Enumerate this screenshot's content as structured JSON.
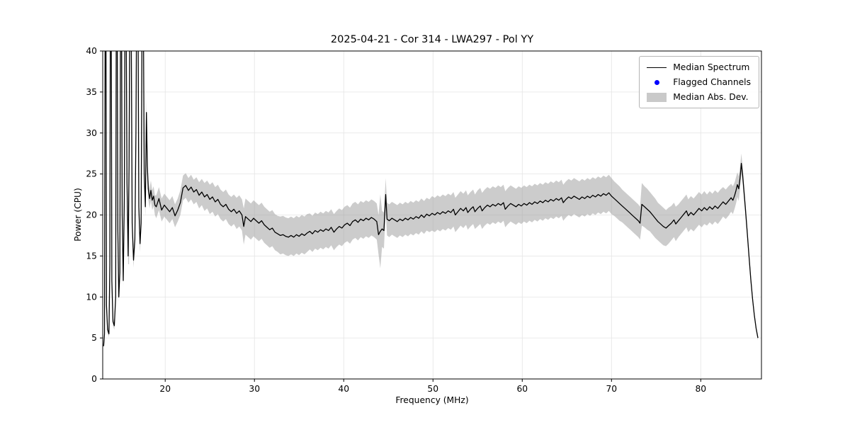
{
  "chart_data": {
    "type": "line",
    "title": "2025-04-21 - Cor 314 - LWA297 - Pol YY",
    "xlabel": "Frequency (MHz)",
    "ylabel": "Power (CPU)",
    "xlim": [
      13.0,
      86.8
    ],
    "ylim": [
      0,
      40
    ],
    "xticks": [
      20,
      30,
      40,
      50,
      60,
      70,
      80
    ],
    "yticks": [
      0,
      5,
      10,
      15,
      20,
      25,
      30,
      35,
      40
    ],
    "grid": true,
    "legend_position": "upper right",
    "legend_entries": [
      {
        "label": "Median Spectrum",
        "marker": "line",
        "color": "#000000"
      },
      {
        "label": "Flagged Channels",
        "marker": "dot",
        "color": "#0000ff"
      },
      {
        "label": "Median Abs. Dev.",
        "marker": "band",
        "color": "#c9c9c9"
      }
    ],
    "line_color": "#000000",
    "band_color": "#999999",
    "band_alpha": 0.5,
    "grid_color": "#e4e4e4",
    "flagged_channels": [],
    "spectrum_format": [
      "frequency_mhz",
      "power_cpu",
      "median_abs_dev"
    ],
    "spectrum": [
      [
        13.1,
        4,
        0.3
      ],
      [
        13.2,
        5.5,
        0.4
      ],
      [
        13.28,
        46,
        2
      ],
      [
        13.36,
        46,
        2
      ],
      [
        13.42,
        9,
        0.5
      ],
      [
        13.55,
        6,
        0.4
      ],
      [
        13.7,
        5.5,
        0.4
      ],
      [
        13.8,
        14,
        0.8
      ],
      [
        13.86,
        46,
        2
      ],
      [
        13.95,
        46,
        2
      ],
      [
        14.02,
        12,
        0.6
      ],
      [
        14.15,
        7,
        0.5
      ],
      [
        14.3,
        6.5,
        0.5
      ],
      [
        14.45,
        10,
        0.6
      ],
      [
        14.52,
        46,
        2
      ],
      [
        14.62,
        46,
        2
      ],
      [
        14.7,
        18,
        1
      ],
      [
        14.8,
        10,
        0.6
      ],
      [
        14.92,
        13,
        0.8
      ],
      [
        15,
        46,
        2
      ],
      [
        15.1,
        46,
        2
      ],
      [
        15.18,
        20,
        1.2
      ],
      [
        15.3,
        12,
        0.8
      ],
      [
        15.42,
        22,
        1.5
      ],
      [
        15.5,
        46,
        3
      ],
      [
        15.62,
        46,
        3
      ],
      [
        15.72,
        24,
        1.5
      ],
      [
        15.85,
        15,
        1
      ],
      [
        15.95,
        26,
        12
      ],
      [
        16.05,
        46,
        3
      ],
      [
        16.18,
        46,
        3
      ],
      [
        16.3,
        19,
        1.2
      ],
      [
        16.45,
        14.5,
        0.9
      ],
      [
        16.6,
        17,
        1
      ],
      [
        16.72,
        30,
        2
      ],
      [
        16.8,
        46,
        2
      ],
      [
        16.95,
        46,
        2
      ],
      [
        17.05,
        21,
        1.2
      ],
      [
        17.18,
        16.5,
        1
      ],
      [
        17.3,
        19,
        1.1
      ],
      [
        17.42,
        46,
        2
      ],
      [
        17.55,
        46,
        2
      ],
      [
        17.65,
        25,
        1.4
      ],
      [
        17.78,
        21,
        1.2
      ],
      [
        17.9,
        32.5,
        1.5
      ],
      [
        18,
        26,
        1.4
      ],
      [
        18.1,
        23.2,
        1.3
      ],
      [
        18.25,
        22,
        1.2
      ],
      [
        18.4,
        23,
        1.2
      ],
      [
        18.55,
        21.8,
        1.2
      ],
      [
        18.7,
        22.3,
        1.2
      ],
      [
        18.85,
        21.2,
        1.2
      ],
      [
        19,
        21,
        1.4
      ],
      [
        19.3,
        22,
        1.4
      ],
      [
        19.6,
        20.6,
        1.4
      ],
      [
        19.9,
        21.2,
        1.4
      ],
      [
        20.2,
        20.8,
        1.4
      ],
      [
        20.5,
        20.4,
        1.4
      ],
      [
        20.8,
        20.9,
        1.4
      ],
      [
        21.1,
        19.9,
        1.4
      ],
      [
        21.4,
        20.6,
        1.4
      ],
      [
        21.7,
        21.5,
        1.5
      ],
      [
        22,
        23.3,
        1.5
      ],
      [
        22.3,
        23.6,
        1.5
      ],
      [
        22.6,
        23,
        1.5
      ],
      [
        22.9,
        23.4,
        1.5
      ],
      [
        23.2,
        22.8,
        1.5
      ],
      [
        23.5,
        23.1,
        1.5
      ],
      [
        23.8,
        22.4,
        1.6
      ],
      [
        24.1,
        22.8,
        1.6
      ],
      [
        24.4,
        22.2,
        1.7
      ],
      [
        24.7,
        22.5,
        1.7
      ],
      [
        25,
        21.9,
        1.8
      ],
      [
        25.3,
        22.2,
        1.8
      ],
      [
        25.6,
        21.6,
        1.8
      ],
      [
        25.9,
        21.9,
        1.8
      ],
      [
        26.2,
        21.3,
        1.8
      ],
      [
        26.5,
        21,
        1.8
      ],
      [
        26.8,
        21.3,
        1.8
      ],
      [
        27.1,
        20.7,
        1.8
      ],
      [
        27.4,
        20.4,
        1.8
      ],
      [
        27.7,
        20.7,
        1.8
      ],
      [
        28,
        20.2,
        1.9
      ],
      [
        28.3,
        20.5,
        1.9
      ],
      [
        28.6,
        20,
        1.9
      ],
      [
        28.8,
        18.6,
        2.2
      ],
      [
        29,
        19.8,
        2.2
      ],
      [
        29.3,
        19.5,
        2.2
      ],
      [
        29.6,
        19.2,
        2.2
      ],
      [
        29.9,
        19.6,
        2.2
      ],
      [
        30.2,
        19.3,
        2.2
      ],
      [
        30.5,
        19,
        2.2
      ],
      [
        30.8,
        19.3,
        2.2
      ],
      [
        31.1,
        18.8,
        2.2
      ],
      [
        31.4,
        18.5,
        2.2
      ],
      [
        31.7,
        18.2,
        2.2
      ],
      [
        32,
        18.4,
        2.2
      ],
      [
        32.3,
        17.9,
        2.2
      ],
      [
        32.6,
        17.7,
        2.2
      ],
      [
        32.9,
        17.5,
        2.3
      ],
      [
        33.2,
        17.6,
        2.3
      ],
      [
        33.5,
        17.4,
        2.3
      ],
      [
        33.8,
        17.3,
        2.3
      ],
      [
        34.1,
        17.5,
        2.3
      ],
      [
        34.4,
        17.3,
        2.3
      ],
      [
        34.7,
        17.6,
        2.3
      ],
      [
        35,
        17.4,
        2.3
      ],
      [
        35.3,
        17.7,
        2.3
      ],
      [
        35.6,
        17.5,
        2.3
      ],
      [
        35.9,
        17.8,
        2.3
      ],
      [
        36.2,
        18,
        2.2
      ],
      [
        36.5,
        17.7,
        2.2
      ],
      [
        36.8,
        18.1,
        2.2
      ],
      [
        37.1,
        17.9,
        2.2
      ],
      [
        37.4,
        18.2,
        2.2
      ],
      [
        37.7,
        18,
        2.2
      ],
      [
        38,
        18.3,
        2.2
      ],
      [
        38.3,
        18.1,
        2.2
      ],
      [
        38.6,
        18.5,
        2.2
      ],
      [
        38.9,
        17.9,
        2.2
      ],
      [
        39.2,
        18.3,
        2.2
      ],
      [
        39.5,
        18.6,
        2.2
      ],
      [
        39.8,
        18.4,
        2.2
      ],
      [
        40.1,
        18.8,
        2.2
      ],
      [
        40.4,
        19,
        2.2
      ],
      [
        40.7,
        18.7,
        2.2
      ],
      [
        41,
        19.2,
        2.2
      ],
      [
        41.3,
        19.4,
        2.2
      ],
      [
        41.6,
        19.1,
        2.2
      ],
      [
        41.9,
        19.5,
        2.2
      ],
      [
        42.2,
        19.3,
        2.2
      ],
      [
        42.5,
        19.6,
        2.2
      ],
      [
        42.8,
        19.4,
        2.2
      ],
      [
        43.1,
        19.7,
        2.2
      ],
      [
        43.4,
        19.5,
        2.2
      ],
      [
        43.7,
        19.2,
        2.2
      ],
      [
        43.9,
        17.6,
        2.4
      ],
      [
        44.1,
        18,
        4.5
      ],
      [
        44.3,
        18.3,
        2.2
      ],
      [
        44.5,
        18.1,
        2.2
      ],
      [
        44.7,
        22.5,
        2
      ],
      [
        44.85,
        19.5,
        2
      ],
      [
        45.1,
        19.3,
        2
      ],
      [
        45.4,
        19.6,
        2
      ],
      [
        45.7,
        19.4,
        2
      ],
      [
        46,
        19.2,
        2
      ],
      [
        46.3,
        19.5,
        2
      ],
      [
        46.6,
        19.3,
        2
      ],
      [
        46.9,
        19.6,
        2
      ],
      [
        47.2,
        19.4,
        2
      ],
      [
        47.5,
        19.7,
        2
      ],
      [
        47.8,
        19.5,
        2
      ],
      [
        48.1,
        19.8,
        2
      ],
      [
        48.4,
        19.6,
        2
      ],
      [
        48.7,
        20,
        2
      ],
      [
        49,
        19.7,
        2
      ],
      [
        49.3,
        20.1,
        2
      ],
      [
        49.6,
        19.9,
        2
      ],
      [
        49.9,
        20.2,
        2.1
      ],
      [
        50.2,
        20,
        2.1
      ],
      [
        50.5,
        20.3,
        2.1
      ],
      [
        50.8,
        20.1,
        2.1
      ],
      [
        51.1,
        20.4,
        2.1
      ],
      [
        51.4,
        20.2,
        2.1
      ],
      [
        51.7,
        20.5,
        2.1
      ],
      [
        52,
        20.3,
        2.1
      ],
      [
        52.3,
        20.7,
        2.1
      ],
      [
        52.5,
        20,
        2.1
      ],
      [
        52.8,
        20.4,
        2.1
      ],
      [
        53.1,
        20.8,
        2.1
      ],
      [
        53.4,
        20.5,
        2.1
      ],
      [
        53.7,
        20.9,
        2.1
      ],
      [
        53.9,
        20.3,
        2.1
      ],
      [
        54.2,
        20.7,
        2.1
      ],
      [
        54.5,
        21,
        2.1
      ],
      [
        54.7,
        20.4,
        2.1
      ],
      [
        55,
        20.8,
        2.2
      ],
      [
        55.3,
        21.1,
        2.2
      ],
      [
        55.5,
        20.5,
        2.2
      ],
      [
        55.8,
        20.9,
        2.2
      ],
      [
        56.1,
        21.2,
        2.2
      ],
      [
        56.4,
        21,
        2.2
      ],
      [
        56.7,
        21.3,
        2.2
      ],
      [
        57,
        21.1,
        2.2
      ],
      [
        57.3,
        21.4,
        2.2
      ],
      [
        57.6,
        21.2,
        2.2
      ],
      [
        57.9,
        21.5,
        2.2
      ],
      [
        58.1,
        20.7,
        2.2
      ],
      [
        58.4,
        21.1,
        2.2
      ],
      [
        58.7,
        21.4,
        2.2
      ],
      [
        59,
        21.2,
        2.2
      ],
      [
        59.3,
        21,
        2.2
      ],
      [
        59.6,
        21.3,
        2.2
      ],
      [
        59.9,
        21.1,
        2.2
      ],
      [
        60.2,
        21.4,
        2.2
      ],
      [
        60.5,
        21.2,
        2.2
      ],
      [
        60.8,
        21.5,
        2.2
      ],
      [
        61.1,
        21.3,
        2.2
      ],
      [
        61.4,
        21.6,
        2.2
      ],
      [
        61.7,
        21.4,
        2.2
      ],
      [
        62,
        21.7,
        2.2
      ],
      [
        62.3,
        21.5,
        2.2
      ],
      [
        62.6,
        21.8,
        2.2
      ],
      [
        62.9,
        21.6,
        2.2
      ],
      [
        63.2,
        21.9,
        2.2
      ],
      [
        63.5,
        21.7,
        2.2
      ],
      [
        63.8,
        22,
        2.2
      ],
      [
        64.1,
        21.8,
        2.2
      ],
      [
        64.4,
        22.1,
        2.2
      ],
      [
        64.6,
        21.5,
        2.2
      ],
      [
        64.9,
        21.9,
        2.2
      ],
      [
        65.2,
        22.2,
        2.2
      ],
      [
        65.5,
        22,
        2.2
      ],
      [
        65.8,
        22.3,
        2.2
      ],
      [
        66.1,
        22.1,
        2.2
      ],
      [
        66.4,
        21.9,
        2.2
      ],
      [
        66.7,
        22.2,
        2.2
      ],
      [
        67,
        22,
        2.2
      ],
      [
        67.3,
        22.3,
        2.2
      ],
      [
        67.6,
        22.1,
        2.2
      ],
      [
        67.9,
        22.4,
        2.2
      ],
      [
        68.2,
        22.2,
        2.2
      ],
      [
        68.5,
        22.5,
        2.2
      ],
      [
        68.8,
        22.3,
        2.2
      ],
      [
        69.1,
        22.6,
        2.2
      ],
      [
        69.4,
        22.4,
        2.2
      ],
      [
        69.7,
        22.7,
        2.2
      ],
      [
        70,
        22.3,
        2.2
      ],
      [
        70.3,
        22,
        2.1
      ],
      [
        70.6,
        21.7,
        2.1
      ],
      [
        70.9,
        21.4,
        2.1
      ],
      [
        71.2,
        21.1,
        2
      ],
      [
        71.5,
        20.8,
        2
      ],
      [
        71.8,
        20.5,
        2
      ],
      [
        72.1,
        20.2,
        2
      ],
      [
        72.4,
        19.9,
        2
      ],
      [
        72.7,
        19.6,
        2
      ],
      [
        73,
        19.3,
        2
      ],
      [
        73.2,
        19,
        2
      ],
      [
        73.4,
        21.3,
        2.6
      ],
      [
        73.7,
        21,
        2.5
      ],
      [
        74,
        20.7,
        2.5
      ],
      [
        74.3,
        20.4,
        2.4
      ],
      [
        74.6,
        20,
        2.4
      ],
      [
        74.9,
        19.6,
        2.4
      ],
      [
        75.2,
        19.2,
        2.3
      ],
      [
        75.5,
        18.9,
        2.3
      ],
      [
        75.8,
        18.6,
        2.3
      ],
      [
        76.1,
        18.4,
        2.2
      ],
      [
        76.4,
        18.7,
        2.2
      ],
      [
        76.7,
        19,
        2.1
      ],
      [
        77,
        19.4,
        2.1
      ],
      [
        77.2,
        18.9,
        2.1
      ],
      [
        77.5,
        19.3,
        2
      ],
      [
        77.8,
        19.7,
        2
      ],
      [
        78.1,
        20.1,
        2
      ],
      [
        78.4,
        20.5,
        2
      ],
      [
        78.6,
        19.9,
        2
      ],
      [
        78.9,
        20.3,
        2
      ],
      [
        79.2,
        20,
        2
      ],
      [
        79.5,
        20.4,
        2
      ],
      [
        79.8,
        20.8,
        2
      ],
      [
        80.1,
        20.5,
        2
      ],
      [
        80.4,
        20.9,
        2
      ],
      [
        80.7,
        20.6,
        1.9
      ],
      [
        81,
        21,
        1.9
      ],
      [
        81.3,
        20.7,
        1.9
      ],
      [
        81.6,
        21.1,
        1.9
      ],
      [
        81.9,
        20.8,
        1.9
      ],
      [
        82.2,
        21.2,
        1.9
      ],
      [
        82.5,
        21.6,
        1.8
      ],
      [
        82.8,
        21.3,
        1.8
      ],
      [
        83.1,
        21.7,
        1.8
      ],
      [
        83.4,
        22.1,
        1.7
      ],
      [
        83.6,
        21.8,
        1.7
      ],
      [
        83.8,
        22.4,
        1.6
      ],
      [
        83.95,
        23,
        1.6
      ],
      [
        84.1,
        23.7,
        1.5
      ],
      [
        84.25,
        23.2,
        1.5
      ],
      [
        84.4,
        24.5,
        1.4
      ],
      [
        84.55,
        26.3,
        1.2
      ],
      [
        84.7,
        24.8,
        1
      ],
      [
        84.85,
        22.8,
        0.9
      ],
      [
        85,
        20.8,
        0.8
      ],
      [
        85.2,
        18,
        0.7
      ],
      [
        85.4,
        15,
        0.6
      ],
      [
        85.6,
        12.2,
        0.5
      ],
      [
        85.8,
        9.8,
        0.4
      ],
      [
        86,
        7.8,
        0.4
      ],
      [
        86.2,
        6.2,
        0.3
      ],
      [
        86.4,
        5,
        0.3
      ]
    ]
  }
}
